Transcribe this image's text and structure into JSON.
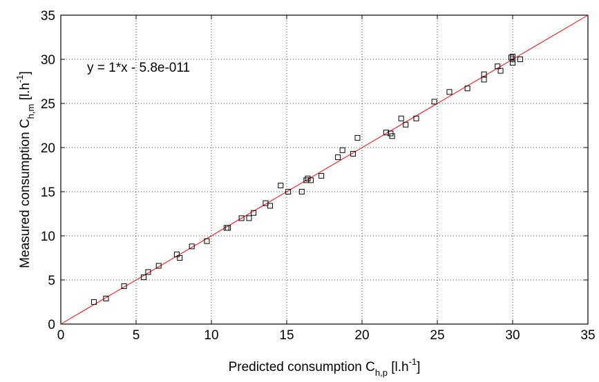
{
  "chart_data": {
    "type": "scatter",
    "title": "",
    "xlabel": {
      "main": "Predicted consumption C",
      "sub": "h,p",
      "unit_open": " [l.h",
      "sup": "-1",
      "unit_close": "]"
    },
    "ylabel": {
      "main": "Measured consumption C",
      "sub": "h,m",
      "unit_open": " [l.h",
      "sup": "-1",
      "unit_close": "]"
    },
    "xlim": [
      0,
      35
    ],
    "ylim": [
      0,
      35
    ],
    "xticks": [
      "0",
      "5",
      "10",
      "15",
      "20",
      "25",
      "30",
      "35"
    ],
    "yticks": [
      "0",
      "5",
      "10",
      "15",
      "20",
      "25",
      "30",
      "35"
    ],
    "grid": true,
    "annotation": "y = 1*x - 5.8e-011",
    "fit_line": {
      "slope": 1,
      "intercept": 0,
      "x_range": [
        0,
        35
      ],
      "color": "#ff0000"
    },
    "marker": "square",
    "marker_color": "#000000",
    "points": [
      [
        2.2,
        2.5
      ],
      [
        3.0,
        2.9
      ],
      [
        4.2,
        4.3
      ],
      [
        5.5,
        5.3
      ],
      [
        5.8,
        5.9
      ],
      [
        6.5,
        6.6
      ],
      [
        7.7,
        7.9
      ],
      [
        7.9,
        7.5
      ],
      [
        8.7,
        8.8
      ],
      [
        9.7,
        9.4
      ],
      [
        11.0,
        10.9
      ],
      [
        11.1,
        10.9
      ],
      [
        12.0,
        12.0
      ],
      [
        12.5,
        12.0
      ],
      [
        12.8,
        12.6
      ],
      [
        13.6,
        13.7
      ],
      [
        13.9,
        13.4
      ],
      [
        14.6,
        15.7
      ],
      [
        15.1,
        15.0
      ],
      [
        16.0,
        15.0
      ],
      [
        16.3,
        16.3
      ],
      [
        16.4,
        16.5
      ],
      [
        16.6,
        16.3
      ],
      [
        17.3,
        16.8
      ],
      [
        18.4,
        18.9
      ],
      [
        18.7,
        19.7
      ],
      [
        19.4,
        19.3
      ],
      [
        19.7,
        21.1
      ],
      [
        21.6,
        21.7
      ],
      [
        21.9,
        21.6
      ],
      [
        22.0,
        21.3
      ],
      [
        22.6,
        23.3
      ],
      [
        22.9,
        22.6
      ],
      [
        23.6,
        23.3
      ],
      [
        24.8,
        25.2
      ],
      [
        25.8,
        26.3
      ],
      [
        27.0,
        26.7
      ],
      [
        28.1,
        28.3
      ],
      [
        28.1,
        27.7
      ],
      [
        29.0,
        29.2
      ],
      [
        29.2,
        28.7
      ],
      [
        29.9,
        30.2
      ],
      [
        30.0,
        30.3
      ],
      [
        30.0,
        30.0
      ],
      [
        30.0,
        29.6
      ],
      [
        30.5,
        30.0
      ]
    ]
  }
}
